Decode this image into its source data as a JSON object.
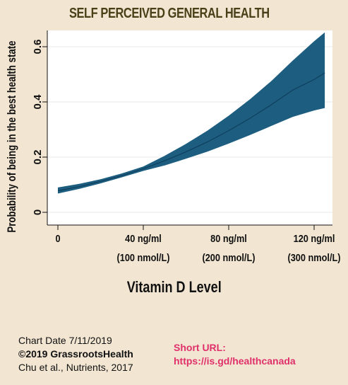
{
  "chart_data": {
    "type": "line",
    "title": "SELF PERCEIVED GENERAL HEALTH",
    "xlabel": "Vitamin D Level",
    "ylabel": "Probability of being in the best health state",
    "xlim": [
      0,
      125
    ],
    "ylim": [
      -0.02,
      0.66
    ],
    "x_ticks": [
      {
        "value": 0,
        "line1": "0",
        "line2": ""
      },
      {
        "value": 40,
        "line1": "40 ng/ml",
        "line2": "(100 nmol/L)"
      },
      {
        "value": 80,
        "line1": "80 ng/ml",
        "line2": "(200 nmol/L)"
      },
      {
        "value": 120,
        "line1": "120 ng/ml",
        "line2": "(300 nmol/L)"
      }
    ],
    "y_ticks": [
      {
        "value": 0,
        "label": "0"
      },
      {
        "value": 0.2,
        "label": "0.2"
      },
      {
        "value": 0.4,
        "label": "0.4"
      },
      {
        "value": 0.6,
        "label": "0.6"
      }
    ],
    "series": [
      {
        "x": [
          0,
          10,
          20,
          30,
          40,
          50,
          60,
          70,
          80,
          90,
          100,
          110,
          120,
          125
        ],
        "y": [
          0.078,
          0.093,
          0.112,
          0.133,
          0.158,
          0.187,
          0.219,
          0.255,
          0.296,
          0.341,
          0.39,
          0.443,
          0.481,
          0.505
        ],
        "lower": [
          0.068,
          0.085,
          0.105,
          0.127,
          0.15,
          0.17,
          0.194,
          0.22,
          0.249,
          0.28,
          0.313,
          0.346,
          0.369,
          0.378
        ],
        "upper": [
          0.09,
          0.103,
          0.12,
          0.141,
          0.166,
          0.205,
          0.248,
          0.296,
          0.35,
          0.41,
          0.476,
          0.55,
          0.62,
          0.652
        ]
      }
    ],
    "band_color": "#1d5e80",
    "line_color": "#0f3f5c",
    "grid": true
  },
  "footer": {
    "chart_date": "Chart Date 7/11/2019",
    "copyright": "©2019 GrassrootsHealth",
    "citation": "Chu et al., Nutrients, 2017",
    "short_url_label": "Short  URL:",
    "short_url": "https://is.gd/healthcanada"
  }
}
